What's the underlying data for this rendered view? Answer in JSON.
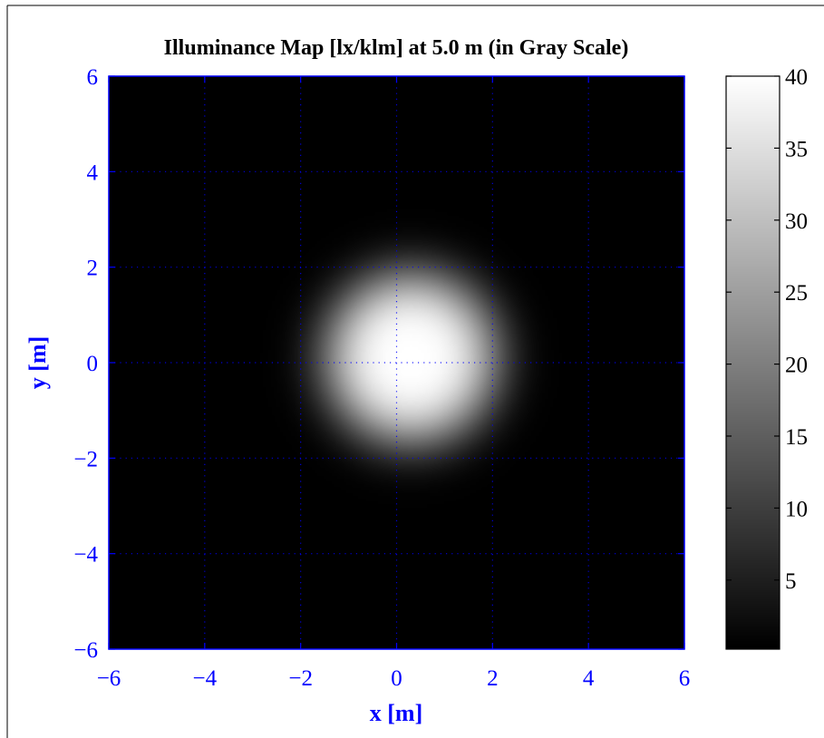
{
  "chart_data": {
    "type": "heatmap",
    "title": "Illuminance Map [lx/klm] at 5.0 m (in Gray Scale)",
    "xlabel": "x [m]",
    "ylabel": "y [m]",
    "xlim": [
      -6,
      6
    ],
    "ylim": [
      -6,
      6
    ],
    "xticks": [
      -6,
      -4,
      -2,
      0,
      2,
      4,
      6
    ],
    "yticks": [
      -6,
      -4,
      -2,
      0,
      2,
      4,
      6
    ],
    "xtick_labels": [
      "−6",
      "−4",
      "−2",
      "0",
      "2",
      "4",
      "6"
    ],
    "ytick_labels": [
      "−6",
      "−4",
      "−2",
      "0",
      "2",
      "4",
      "6"
    ],
    "grid": true,
    "colormap": "gray",
    "clim": [
      0.2,
      40
    ],
    "colorbar_ticks": [
      5,
      10,
      15,
      20,
      25,
      30,
      35,
      40
    ],
    "colorbar_tick_labels": [
      "5",
      "10",
      "15",
      "20",
      "25",
      "30",
      "35",
      "40"
    ],
    "peak_value": 40,
    "peak_center": [
      0.3,
      0.1
    ],
    "falloff_width_m": 1.65
  },
  "colors": {
    "axis": "#0000ff",
    "grid": "#0000ff",
    "title": "#000000",
    "background": "#ffffff"
  }
}
